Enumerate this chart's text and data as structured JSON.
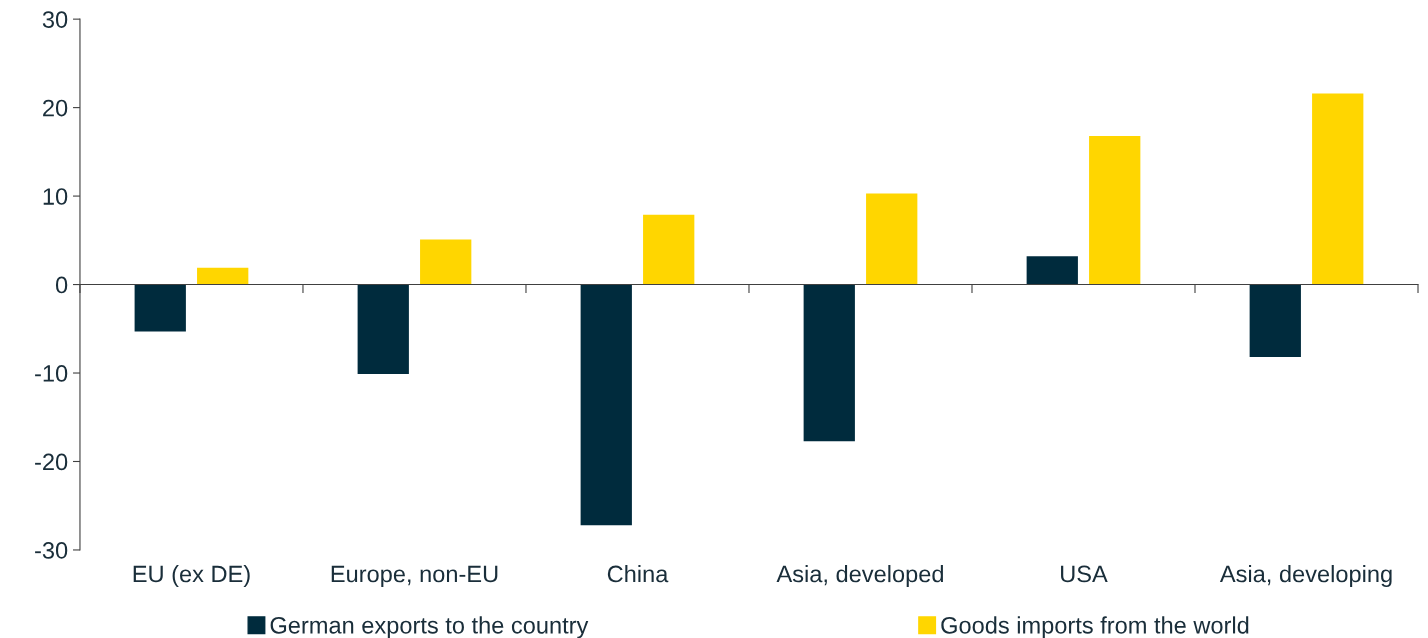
{
  "chart_data": {
    "type": "bar",
    "categories": [
      "EU (ex DE)",
      "Europe, non-EU",
      "China",
      "Asia, developed",
      "USA",
      "Asia, developing"
    ],
    "series": [
      {
        "name": "German exports to the country",
        "color": "#002b3d",
        "values": [
          -5.3,
          -10.1,
          -27.2,
          -17.7,
          3.2,
          -8.2
        ]
      },
      {
        "name": "Goods imports from the world",
        "color": "#ffd600",
        "values": [
          1.9,
          5.1,
          7.9,
          10.3,
          16.8,
          21.6
        ]
      }
    ],
    "ylim": [
      -30,
      30
    ],
    "yticks": [
      -30,
      -20,
      -10,
      0,
      10,
      20,
      30
    ],
    "legend": "bottom"
  }
}
